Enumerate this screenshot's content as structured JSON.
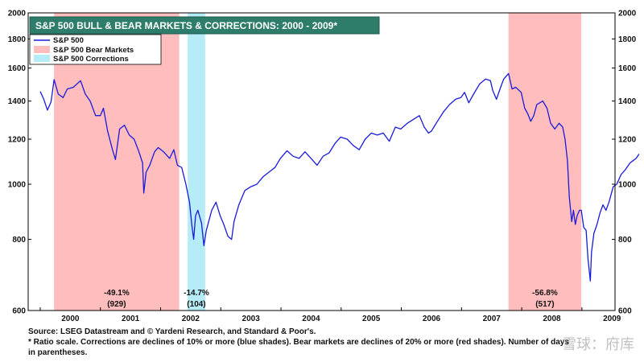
{
  "chart_data": {
    "type": "line",
    "title": "S&P 500 BULL & BEAR MARKETS & CORRECTIONS: 2000 - 2009*",
    "scale": "log",
    "ylim": [
      600,
      2000
    ],
    "xlim": [
      1999.8,
      2009.55
    ],
    "y_ticks": [
      600,
      800,
      1000,
      1200,
      1400,
      1600,
      1800,
      2000
    ],
    "x_tick_labels": [
      "2000",
      "2001",
      "2002",
      "2003",
      "2004",
      "2005",
      "2006",
      "2007",
      "2008",
      "2009"
    ],
    "grid": false,
    "legend_position": "top-left",
    "legend": [
      {
        "label": "S&P 500",
        "kind": "line",
        "color": "#1a1adb"
      },
      {
        "label": "S&P 500 Bear Markets",
        "kind": "box",
        "color": "#ffbdbd"
      },
      {
        "label": "S&P 500 Corrections",
        "kind": "box",
        "color": "#b6ecf8"
      }
    ],
    "bear_markets": [
      {
        "start": 2000.23,
        "end": 2002.31,
        "pct": "-49.1%",
        "days": "(929)"
      },
      {
        "start": 2007.78,
        "end": 2008.99,
        "pct": "-56.8%",
        "days": "(517)"
      }
    ],
    "corrections": [
      {
        "start": 2002.45,
        "end": 2002.74,
        "pct": "-14.7%",
        "days": "(104)"
      }
    ],
    "series": [
      {
        "name": "S&P 500",
        "color": "#1a1adb",
        "points": [
          [
            2000.0,
            1455
          ],
          [
            2000.06,
            1410
          ],
          [
            2000.12,
            1350
          ],
          [
            2000.18,
            1395
          ],
          [
            2000.23,
            1527
          ],
          [
            2000.3,
            1440
          ],
          [
            2000.38,
            1420
          ],
          [
            2000.45,
            1470
          ],
          [
            2000.55,
            1480
          ],
          [
            2000.67,
            1520
          ],
          [
            2000.75,
            1440
          ],
          [
            2000.83,
            1400
          ],
          [
            2000.92,
            1320
          ],
          [
            2001.0,
            1320
          ],
          [
            2001.05,
            1360
          ],
          [
            2001.12,
            1240
          ],
          [
            2001.2,
            1150
          ],
          [
            2001.25,
            1105
          ],
          [
            2001.32,
            1250
          ],
          [
            2001.4,
            1270
          ],
          [
            2001.48,
            1220
          ],
          [
            2001.56,
            1200
          ],
          [
            2001.64,
            1140
          ],
          [
            2001.7,
            1090
          ],
          [
            2001.72,
            965
          ],
          [
            2001.76,
            1050
          ],
          [
            2001.82,
            1080
          ],
          [
            2001.9,
            1140
          ],
          [
            2001.96,
            1160
          ],
          [
            2002.05,
            1140
          ],
          [
            2002.15,
            1110
          ],
          [
            2002.22,
            1150
          ],
          [
            2002.28,
            1080
          ],
          [
            2002.35,
            1070
          ],
          [
            2002.42,
            1000
          ],
          [
            2002.48,
            930
          ],
          [
            2002.52,
            845
          ],
          [
            2002.55,
            800
          ],
          [
            2002.58,
            880
          ],
          [
            2002.62,
            900
          ],
          [
            2002.68,
            855
          ],
          [
            2002.72,
            780
          ],
          [
            2002.76,
            830
          ],
          [
            2002.85,
            900
          ],
          [
            2002.92,
            930
          ],
          [
            2002.99,
            880
          ],
          [
            2003.05,
            850
          ],
          [
            2003.12,
            810
          ],
          [
            2003.18,
            800
          ],
          [
            2003.22,
            860
          ],
          [
            2003.3,
            920
          ],
          [
            2003.4,
            975
          ],
          [
            2003.5,
            990
          ],
          [
            2003.6,
            1000
          ],
          [
            2003.7,
            1030
          ],
          [
            2003.8,
            1050
          ],
          [
            2003.9,
            1070
          ],
          [
            2003.99,
            1110
          ],
          [
            2004.1,
            1145
          ],
          [
            2004.2,
            1120
          ],
          [
            2004.3,
            1110
          ],
          [
            2004.4,
            1140
          ],
          [
            2004.5,
            1110
          ],
          [
            2004.6,
            1080
          ],
          [
            2004.7,
            1120
          ],
          [
            2004.8,
            1135
          ],
          [
            2004.9,
            1180
          ],
          [
            2004.99,
            1210
          ],
          [
            2005.1,
            1200
          ],
          [
            2005.2,
            1170
          ],
          [
            2005.3,
            1150
          ],
          [
            2005.4,
            1200
          ],
          [
            2005.5,
            1230
          ],
          [
            2005.6,
            1220
          ],
          [
            2005.7,
            1230
          ],
          [
            2005.8,
            1190
          ],
          [
            2005.9,
            1260
          ],
          [
            2005.99,
            1250
          ],
          [
            2006.1,
            1280
          ],
          [
            2006.2,
            1300
          ],
          [
            2006.3,
            1320
          ],
          [
            2006.38,
            1260
          ],
          [
            2006.45,
            1230
          ],
          [
            2006.5,
            1240
          ],
          [
            2006.6,
            1290
          ],
          [
            2006.7,
            1340
          ],
          [
            2006.8,
            1380
          ],
          [
            2006.9,
            1410
          ],
          [
            2006.99,
            1420
          ],
          [
            2007.05,
            1450
          ],
          [
            2007.12,
            1390
          ],
          [
            2007.2,
            1440
          ],
          [
            2007.3,
            1500
          ],
          [
            2007.4,
            1530
          ],
          [
            2007.48,
            1520
          ],
          [
            2007.52,
            1460
          ],
          [
            2007.58,
            1410
          ],
          [
            2007.65,
            1480
          ],
          [
            2007.7,
            1530
          ],
          [
            2007.78,
            1565
          ],
          [
            2007.84,
            1470
          ],
          [
            2007.9,
            1480
          ],
          [
            2007.99,
            1450
          ],
          [
            2008.05,
            1360
          ],
          [
            2008.1,
            1330
          ],
          [
            2008.15,
            1290
          ],
          [
            2008.2,
            1320
          ],
          [
            2008.25,
            1380
          ],
          [
            2008.35,
            1400
          ],
          [
            2008.42,
            1360
          ],
          [
            2008.48,
            1280
          ],
          [
            2008.55,
            1250
          ],
          [
            2008.62,
            1280
          ],
          [
            2008.68,
            1260
          ],
          [
            2008.72,
            1200
          ],
          [
            2008.76,
            1100
          ],
          [
            2008.79,
            950
          ],
          [
            2008.83,
            860
          ],
          [
            2008.86,
            900
          ],
          [
            2008.89,
            850
          ],
          [
            2008.92,
            880
          ],
          [
            2008.96,
            900
          ],
          [
            2008.99,
            900
          ],
          [
            2009.03,
            840
          ],
          [
            2009.07,
            830
          ],
          [
            2009.1,
            740
          ],
          [
            2009.14,
            676
          ],
          [
            2009.16,
            760
          ],
          [
            2009.2,
            820
          ],
          [
            2009.25,
            850
          ],
          [
            2009.3,
            890
          ],
          [
            2009.35,
            920
          ],
          [
            2009.4,
            900
          ],
          [
            2009.45,
            930
          ],
          [
            2009.52,
            990
          ],
          [
            2009.58,
            1000
          ],
          [
            2009.65,
            1040
          ],
          [
            2009.72,
            1060
          ],
          [
            2009.8,
            1090
          ],
          [
            2009.85,
            1100
          ],
          [
            2009.9,
            1110
          ],
          [
            2009.95,
            1130
          ]
        ]
      }
    ]
  },
  "footer": {
    "source": "Source: LSEG Datastream and © Yardeni Research, and Standard & Poor's.",
    "note_line1": "* Ratio scale. Corrections are declines of 10% or more (blue shades). Bear markets are declines of 20% or more (red shades). Number of days",
    "note_line2": "in parentheses."
  },
  "watermark": "雪球：府库"
}
